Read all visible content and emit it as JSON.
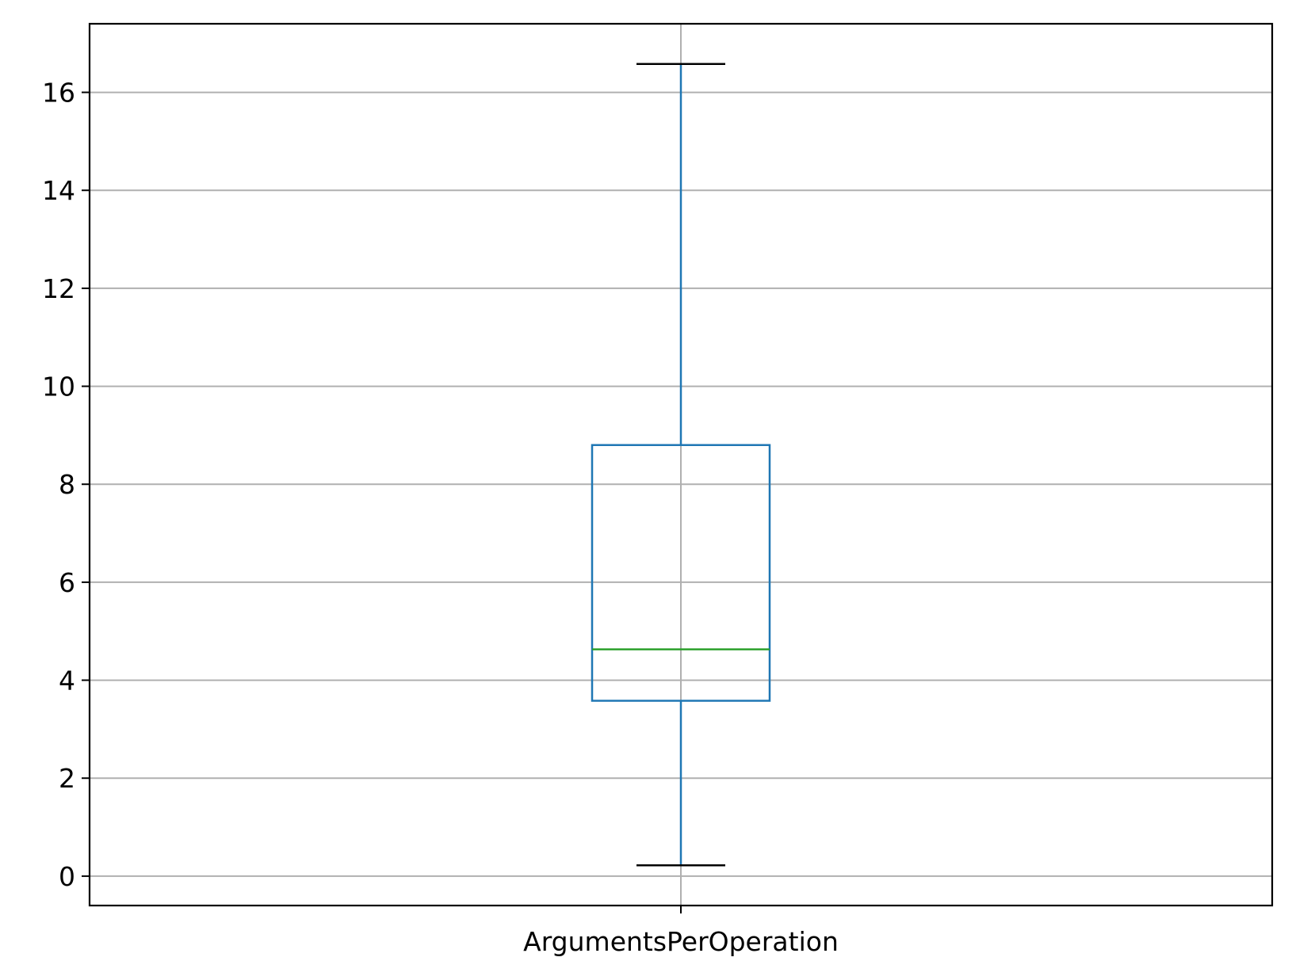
{
  "chart_data": {
    "type": "box",
    "title": "",
    "xlabel": "",
    "ylabel": "",
    "categories": [
      "ArgumentsPerOperation"
    ],
    "boxes": [
      {
        "name": "ArgumentsPerOperation",
        "whisker_low": 0.22,
        "q1": 3.58,
        "median": 4.63,
        "q3": 8.8,
        "whisker_high": 16.58
      }
    ],
    "ylim": [
      -0.6,
      17.4
    ],
    "yticks": [
      0,
      2,
      4,
      6,
      8,
      10,
      12,
      14,
      16
    ],
    "grid": true,
    "legend": "none",
    "colors": {
      "box": "#1f77b4",
      "median": "#2ca02c",
      "whisker_cap": "#000000",
      "grid": "#b0b0b0",
      "axes": "#000000"
    }
  }
}
